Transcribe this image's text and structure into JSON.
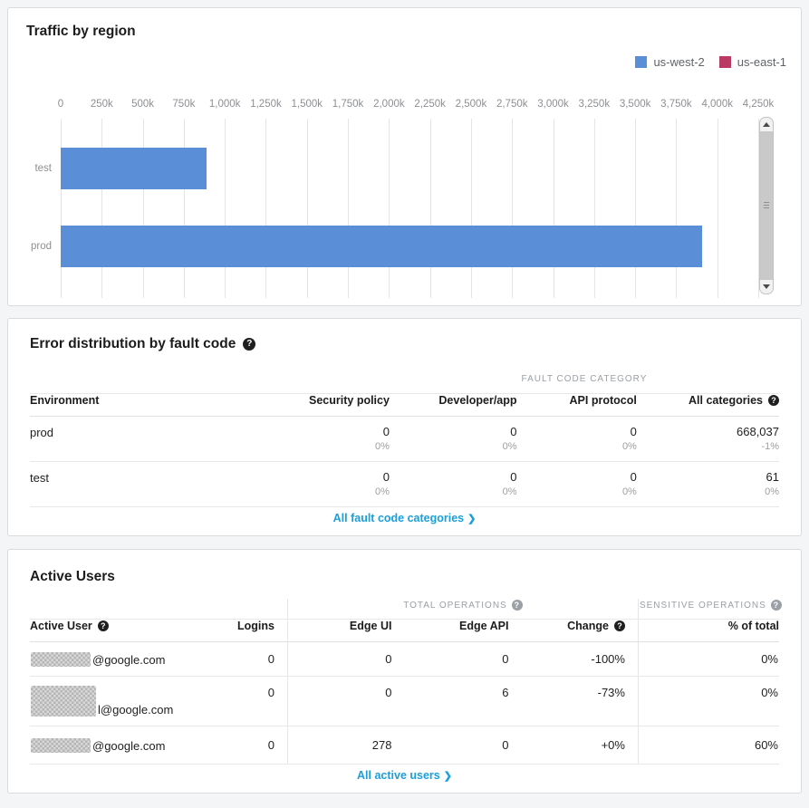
{
  "traffic": {
    "title": "Traffic by region",
    "legend": [
      {
        "label": "us-west-2",
        "color": "#5a8fd8"
      },
      {
        "label": "us-east-1",
        "color": "#b93a63"
      }
    ],
    "chart_data": {
      "type": "bar",
      "orientation": "horizontal",
      "categories": [
        "test",
        "prod"
      ],
      "series": [
        {
          "name": "us-west-2",
          "color": "#5a8fd8",
          "values": [
            890000,
            3910000
          ]
        },
        {
          "name": "us-east-1",
          "color": "#b93a63",
          "values": [
            0,
            0
          ]
        }
      ],
      "x_ticks": [
        "0",
        "250k",
        "500k",
        "750k",
        "1,000k",
        "1,250k",
        "1,500k",
        "1,750k",
        "2,000k",
        "2,250k",
        "2,500k",
        "2,750k",
        "3,000k",
        "3,250k",
        "3,500k",
        "3,750k",
        "4,000k",
        "4,250k"
      ],
      "xlim": [
        0,
        4250000
      ],
      "grid": true,
      "legend_position": "top-right"
    }
  },
  "errors": {
    "title": "Error distribution by fault code",
    "group_header": "FAULT CODE CATEGORY",
    "columns": [
      "Environment",
      "Security policy",
      "Developer/app",
      "API protocol",
      "All categories"
    ],
    "rows": [
      {
        "environment": "prod",
        "security_policy": {
          "value": "0",
          "sub": "0%"
        },
        "developer_app": {
          "value": "0",
          "sub": "0%"
        },
        "api_protocol": {
          "value": "0",
          "sub": "0%"
        },
        "all_categories": {
          "value": "668,037",
          "sub": "-1%"
        }
      },
      {
        "environment": "test",
        "security_policy": {
          "value": "0",
          "sub": "0%"
        },
        "developer_app": {
          "value": "0",
          "sub": "0%"
        },
        "api_protocol": {
          "value": "0",
          "sub": "0%"
        },
        "all_categories": {
          "value": "61",
          "sub": "0%"
        }
      }
    ],
    "footer_link": "All fault code categories",
    "chevron": "❯"
  },
  "users": {
    "title": "Active Users",
    "group_total_ops": "TOTAL OPERATIONS",
    "group_sensitive_ops": "SENSITIVE OPERATIONS",
    "columns": [
      "Active User",
      "Logins",
      "Edge UI",
      "Edge API",
      "Change",
      "% of total"
    ],
    "rows": [
      {
        "user_redacted": true,
        "user_suffix": "@google.com",
        "logins": "0",
        "edge_ui": "0",
        "edge_api": "0",
        "change": "-100%",
        "pct_total": "0%"
      },
      {
        "user_redacted": true,
        "user_suffix": "l@google.com",
        "logins": "0",
        "edge_ui": "0",
        "edge_api": "6",
        "change": "-73%",
        "pct_total": "0%"
      },
      {
        "user_redacted": true,
        "user_suffix": "@google.com",
        "logins": "0",
        "edge_ui": "278",
        "edge_api": "0",
        "change": "+0%",
        "pct_total": "60%"
      }
    ],
    "footer_link": "All active users",
    "chevron": "❯"
  },
  "colors": {
    "link": "#1a9fda",
    "bar_blue": "#5a8fd8",
    "legend_crimson": "#b93a63",
    "page_bg": "#f4f5f6"
  }
}
